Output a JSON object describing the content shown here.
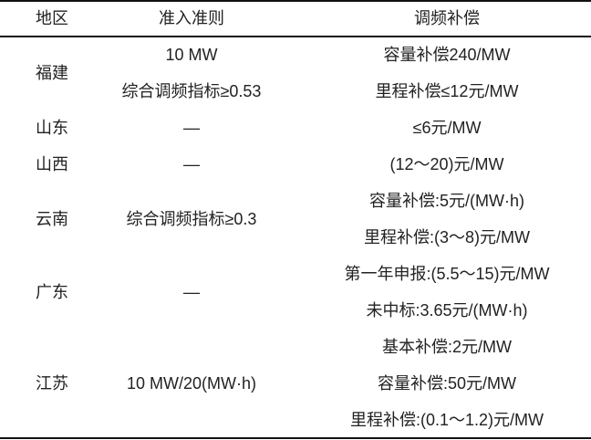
{
  "header": {
    "region": "地区",
    "criteria": "准入准则",
    "compensation": "调频补偿"
  },
  "rows": [
    {
      "region": "福建",
      "criteria": [
        "10 MW",
        "综合调频指标≥0.53"
      ],
      "compensation": [
        "容量补偿240/MW",
        "里程补偿≤12元/MW"
      ]
    },
    {
      "region": "山东",
      "criteria": [
        "—"
      ],
      "compensation": [
        "≤6元/MW"
      ]
    },
    {
      "region": "山西",
      "criteria": [
        "—"
      ],
      "compensation": [
        "(12～20)元/MW"
      ]
    },
    {
      "region": "云南",
      "criteria": [
        "综合调频指标≥0.3"
      ],
      "compensation": [
        "容量补偿:5元/(MW·h)",
        "里程补偿:(3～8)元/MW"
      ]
    },
    {
      "region": "广东",
      "criteria": [
        "—"
      ],
      "compensation": [
        "第一年申报:(5.5～15)元/MW",
        "未中标:3.65元/(MW·h)"
      ]
    },
    {
      "region": "江苏",
      "criteria": [
        "10 MW/20(MW·h)"
      ],
      "compensation": [
        "基本补偿:2元/MW",
        "容量补偿:50元/MW",
        "里程补偿:(0.1～1.2)元/MW"
      ]
    }
  ]
}
